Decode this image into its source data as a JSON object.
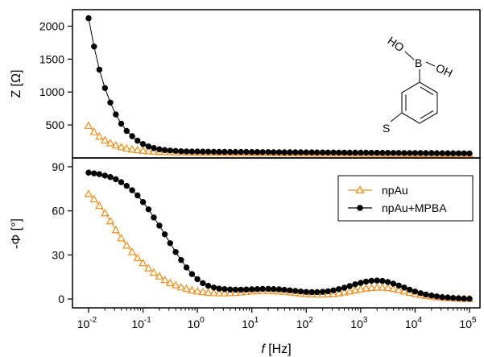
{
  "chart_data": [
    {
      "type": "line",
      "panel": "top",
      "ylabel": "Z [Ω]",
      "xscale": "log",
      "xlim": [
        0.01,
        100000
      ],
      "ylim": [
        0,
        2250
      ],
      "yticks": [
        500,
        1000,
        1500,
        2000
      ],
      "ytick_labels": [
        "500",
        "1000",
        "1500",
        "2000"
      ],
      "grid": false,
      "series": [
        {
          "name": "npAu",
          "color": "#f28e1c",
          "marker": "triangle-open",
          "x": [
            0.01,
            0.0126,
            0.0158,
            0.02,
            0.0251,
            0.0316,
            0.0398,
            0.0501,
            0.0631,
            0.0794,
            0.1,
            0.126,
            0.158,
            0.2,
            0.251,
            0.316,
            0.398,
            0.501,
            0.631,
            0.794,
            1,
            1.26,
            1.58,
            2,
            2.51,
            3.16,
            3.98,
            5.01,
            6.31,
            7.94,
            10,
            12.6,
            15.8,
            20,
            25.1,
            31.6,
            39.8,
            50.1,
            63.1,
            79.4,
            100,
            126,
            158,
            200,
            251,
            316,
            398,
            501,
            631,
            794,
            1000,
            1260,
            1580,
            2000,
            2510,
            3160,
            3980,
            5010,
            6310,
            7940,
            10000,
            12600,
            15800,
            20000,
            25100,
            31600,
            39800,
            50100,
            63100,
            79400,
            100000
          ],
          "values": [
            490,
            395,
            325,
            268,
            225,
            192,
            166,
            146,
            131,
            120,
            111,
            104,
            99,
            95,
            92,
            90,
            88,
            86,
            85,
            84,
            83,
            82,
            81,
            80,
            80,
            79,
            78,
            78,
            77,
            77,
            76,
            76,
            75,
            75,
            74,
            74,
            73,
            73,
            72,
            72,
            71,
            71,
            70,
            70,
            69,
            69,
            68,
            68,
            67,
            67,
            66,
            66,
            65,
            65,
            64,
            64,
            63,
            63,
            62,
            62,
            61,
            61,
            60,
            60,
            59,
            59,
            58,
            58,
            57,
            57,
            56
          ]
        },
        {
          "name": "npAu+MPBA",
          "color": "#000000",
          "marker": "circle-filled",
          "x": [
            0.01,
            0.0126,
            0.0158,
            0.02,
            0.0251,
            0.0316,
            0.0398,
            0.0501,
            0.0631,
            0.0794,
            0.1,
            0.126,
            0.158,
            0.2,
            0.251,
            0.316,
            0.398,
            0.501,
            0.631,
            0.794,
            1,
            1.26,
            1.58,
            2,
            2.51,
            3.16,
            3.98,
            5.01,
            6.31,
            7.94,
            10,
            12.6,
            15.8,
            20,
            25.1,
            31.6,
            39.8,
            50.1,
            63.1,
            79.4,
            100,
            126,
            158,
            200,
            251,
            316,
            398,
            501,
            631,
            794,
            1000,
            1260,
            1580,
            2000,
            2510,
            3160,
            3980,
            5010,
            6310,
            7940,
            10000,
            12600,
            15800,
            20000,
            25100,
            31600,
            39800,
            50100,
            63100,
            79400,
            100000
          ],
          "values": [
            2120,
            1690,
            1340,
            1060,
            840,
            660,
            520,
            410,
            330,
            262,
            212,
            175,
            150,
            132,
            120,
            112,
            106,
            102,
            99,
            97,
            96,
            95,
            94,
            93,
            92,
            92,
            91,
            91,
            90,
            90,
            89,
            89,
            88,
            88,
            87,
            87,
            86,
            86,
            85,
            85,
            84,
            84,
            83,
            83,
            82,
            82,
            81,
            81,
            80,
            80,
            79,
            79,
            78,
            78,
            77,
            77,
            76,
            76,
            75,
            75,
            74,
            74,
            73,
            73,
            72,
            72,
            71,
            71,
            70,
            70,
            69
          ]
        }
      ]
    },
    {
      "type": "line",
      "panel": "bottom",
      "ylabel": "-Φ [°]",
      "xlabel_italic": "f",
      "xlabel_rest": " [Hz]",
      "xscale": "log",
      "xlim": [
        0.01,
        100000
      ],
      "ylim": [
        -6,
        96
      ],
      "yticks": [
        0,
        30,
        60,
        90
      ],
      "ytick_labels": [
        "0",
        "30",
        "60",
        "90"
      ],
      "xticks": [
        0.01,
        0.1,
        1,
        10,
        100,
        1000,
        10000,
        100000
      ],
      "xtick_base": "10",
      "xtick_exponents": [
        "-2",
        "-1",
        "0",
        "1",
        "2",
        "3",
        "4",
        "5"
      ],
      "grid": false,
      "legend_position": "top-right",
      "legend": [
        "npAu",
        "npAu+MPBA"
      ],
      "series": [
        {
          "name": "npAu",
          "color": "#f28e1c",
          "marker": "triangle-open",
          "x": [
            0.01,
            0.0126,
            0.0158,
            0.02,
            0.0251,
            0.0316,
            0.0398,
            0.0501,
            0.0631,
            0.0794,
            0.1,
            0.126,
            0.158,
            0.2,
            0.251,
            0.316,
            0.398,
            0.501,
            0.631,
            0.794,
            1,
            1.26,
            1.58,
            2,
            2.51,
            3.16,
            3.98,
            5.01,
            6.31,
            7.94,
            10,
            12.6,
            15.8,
            20,
            25.1,
            31.6,
            39.8,
            50.1,
            63.1,
            79.4,
            100,
            126,
            158,
            200,
            251,
            316,
            398,
            501,
            631,
            794,
            1000,
            1260,
            1580,
            2000,
            2510,
            3160,
            3980,
            5010,
            6310,
            7940,
            10000,
            12600,
            15800,
            20000,
            25100,
            31600,
            39800,
            50100,
            63100,
            79400,
            100000
          ],
          "values": [
            71.5,
            68,
            63.5,
            58.5,
            53,
            47,
            41.5,
            36.5,
            32,
            28,
            24.5,
            21,
            18,
            15.5,
            13,
            11,
            9.5,
            8,
            7,
            6,
            5.3,
            4.8,
            4.4,
            4.1,
            4.0,
            4.0,
            4.1,
            4.3,
            4.6,
            5.0,
            5.3,
            5.5,
            5.6,
            5.6,
            5.5,
            5.3,
            5.0,
            4.6,
            4.2,
            3.8,
            3.5,
            3.3,
            3.2,
            3.2,
            3.3,
            3.6,
            4.0,
            4.6,
            5.3,
            6.0,
            6.7,
            7.3,
            7.7,
            7.9,
            7.9,
            7.6,
            7.0,
            6.2,
            5.3,
            4.4,
            3.6,
            2.9,
            2.3,
            1.8,
            1.4,
            1.1,
            0.8,
            0.6,
            0.4,
            0.3,
            0.2
          ]
        },
        {
          "name": "npAu+MPBA",
          "color": "#000000",
          "marker": "circle-filled",
          "x": [
            0.01,
            0.0126,
            0.0158,
            0.02,
            0.0251,
            0.0316,
            0.0398,
            0.0501,
            0.0631,
            0.0794,
            0.1,
            0.126,
            0.158,
            0.2,
            0.251,
            0.316,
            0.398,
            0.501,
            0.631,
            0.794,
            1,
            1.26,
            1.58,
            2,
            2.51,
            3.16,
            3.98,
            5.01,
            6.31,
            7.94,
            10,
            12.6,
            15.8,
            20,
            25.1,
            31.6,
            39.8,
            50.1,
            63.1,
            79.4,
            100,
            126,
            158,
            200,
            251,
            316,
            398,
            501,
            631,
            794,
            1000,
            1260,
            1580,
            2000,
            2510,
            3160,
            3980,
            5010,
            6310,
            7940,
            10000,
            12600,
            15800,
            20000,
            25100,
            31600,
            39800,
            50100,
            63100,
            79400,
            100000
          ],
          "values": [
            86,
            85.5,
            85,
            84,
            83,
            81.5,
            79.5,
            77,
            74,
            70.5,
            66,
            61,
            55.5,
            50,
            44,
            38,
            32,
            26.5,
            21.5,
            17,
            13.5,
            10.8,
            9,
            7.8,
            7.1,
            6.7,
            6.5,
            6.4,
            6.4,
            6.5,
            6.6,
            6.8,
            6.9,
            6.9,
            6.8,
            6.6,
            6.3,
            5.9,
            5.5,
            5.1,
            4.8,
            4.7,
            4.7,
            4.9,
            5.3,
            5.9,
            6.7,
            7.7,
            8.8,
            10.0,
            11.0,
            11.9,
            12.4,
            12.6,
            12.3,
            11.6,
            10.5,
            9.2,
            7.8,
            6.4,
            5.1,
            4.0,
            3.1,
            2.4,
            1.8,
            1.3,
            1.0,
            0.7,
            0.5,
            0.3,
            0.2
          ]
        }
      ]
    }
  ],
  "structure_labels": {
    "hydroxyl_left": "HO",
    "boron": "B",
    "hydroxyl_right": "OH",
    "sulfur": "S"
  }
}
